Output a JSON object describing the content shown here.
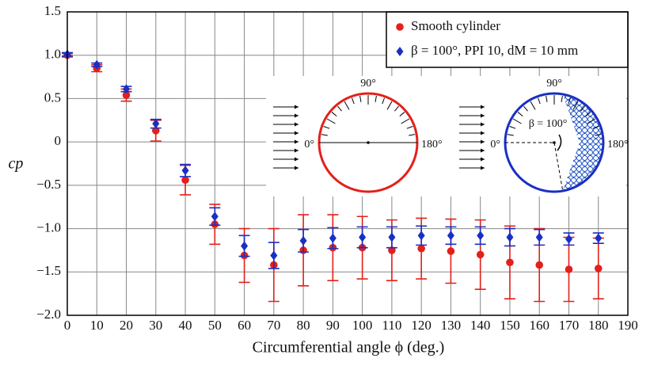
{
  "chart_data": {
    "type": "scatter",
    "xlabel": "Circumferential angle ϕ (deg.)",
    "ylabel": "cp",
    "x": [
      0,
      10,
      20,
      30,
      40,
      50,
      60,
      70,
      80,
      90,
      100,
      110,
      120,
      130,
      140,
      150,
      160,
      170,
      180
    ],
    "series": [
      {
        "name": "Smooth cylinder",
        "color": "#e3201b",
        "marker": "circle",
        "values": [
          1.0,
          0.85,
          0.54,
          0.13,
          -0.44,
          -0.95,
          -1.31,
          -1.42,
          -1.25,
          -1.22,
          -1.22,
          -1.25,
          -1.23,
          -1.26,
          -1.3,
          -1.39,
          -1.42,
          -1.47,
          -1.46
        ],
        "errors": [
          0.02,
          0.04,
          0.07,
          0.12,
          0.17,
          0.23,
          0.31,
          0.42,
          0.41,
          0.38,
          0.36,
          0.35,
          0.35,
          0.37,
          0.4,
          0.42,
          0.42,
          0.37,
          0.35
        ]
      },
      {
        "name": "β = 100°, PPI 10, dM = 10 mm",
        "color": "#1a2fc4",
        "marker": "diamond",
        "values": [
          1.01,
          0.89,
          0.61,
          0.21,
          -0.33,
          -0.86,
          -1.2,
          -1.31,
          -1.14,
          -1.11,
          -1.1,
          -1.1,
          -1.08,
          -1.08,
          -1.08,
          -1.1,
          -1.1,
          -1.12,
          -1.11
        ],
        "errors": [
          0.02,
          0.02,
          0.03,
          0.05,
          0.07,
          0.1,
          0.12,
          0.15,
          0.13,
          0.12,
          0.12,
          0.12,
          0.11,
          0.1,
          0.1,
          0.1,
          0.09,
          0.07,
          0.06
        ]
      }
    ],
    "xlim": [
      0,
      190
    ],
    "xticks": [
      0,
      10,
      20,
      30,
      40,
      50,
      60,
      70,
      80,
      90,
      100,
      110,
      120,
      130,
      140,
      150,
      160,
      170,
      180,
      190
    ],
    "ylim": [
      -2,
      1.5
    ],
    "yticks": [
      {
        "value": -2,
        "label": "−2.0"
      },
      {
        "value": -1.5,
        "label": "−1.5"
      },
      {
        "value": -1,
        "label": "−1.0"
      },
      {
        "value": -0.5,
        "label": "−0.5"
      },
      0,
      0.5,
      {
        "value": 1,
        "label": "1.0"
      },
      1.5
    ],
    "grid": true,
    "legend": "upper right",
    "insets": [
      {
        "top": "90°",
        "left": "0°",
        "right": "180°"
      },
      {
        "top": "90°",
        "left": "0°",
        "right": "180°",
        "angle": "β = 100°"
      }
    ]
  }
}
